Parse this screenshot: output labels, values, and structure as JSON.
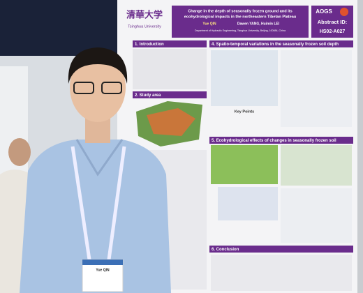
{
  "poster": {
    "university": "Tsinghua University",
    "title_lines": [
      "Change in the depth of seasonally frozen ground and its",
      "ecohydrological impacts in the northeastern Tibetan Plateau"
    ],
    "presenter": "Yue QIN",
    "coauthors": "Dawen YANG, Huimin LEI",
    "affiliation": "Department of Hydraulic Engineering, Tsinghua University, Beijing, 100084, China",
    "conference": "AOGS",
    "abstract_label": "Abstract ID:",
    "abstract_id": "HS02-A027",
    "sections": [
      "1. Introduction",
      "2. Study area",
      "4. Spatio-temporal variations in the seasonally frozen soil depth",
      "5. Ecohydrological effects of changes in seasonally frozen soil",
      "6. Conclusion"
    ],
    "key_points": "Key Points"
  },
  "badge": {
    "name": "Yue QIN"
  }
}
